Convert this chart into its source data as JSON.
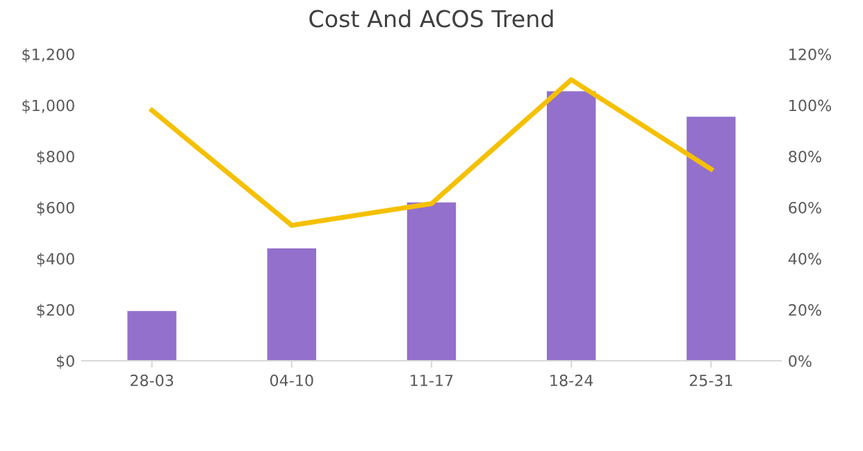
{
  "chart_data": {
    "type": "bar",
    "title": "Cost And ACOS Trend",
    "categories": [
      "28-03",
      "04-10",
      "11-17",
      "18-24",
      "25-31"
    ],
    "series": [
      {
        "color": "#9370cc",
        "values": [
          195,
          440,
          620,
          1055,
          955
        ]
      },
      {
        "type": "line",
        "axis": "y2",
        "color": "#f5c000",
        "values": [
          98,
          53,
          61.5,
          110,
          75
        ]
      }
    ],
    "ylim": [
      0,
      1200
    ],
    "yticks": [
      {
        "value": 0,
        "label": "$0"
      },
      {
        "value": 200,
        "label": "$200"
      },
      {
        "value": 400,
        "label": "$400"
      },
      {
        "value": 600,
        "label": "$600"
      },
      {
        "value": 800,
        "label": "$800"
      },
      {
        "value": 1000,
        "label": "$1,000"
      },
      {
        "value": 1200,
        "label": "$1,200"
      }
    ],
    "y2lim": [
      0,
      120
    ],
    "y2ticks": [
      {
        "value": 0,
        "label": "0%"
      },
      {
        "value": 20,
        "label": "20%"
      },
      {
        "value": 40,
        "label": "40%"
      },
      {
        "value": 60,
        "label": "60%"
      },
      {
        "value": 80,
        "label": "80%"
      },
      {
        "value": 100,
        "label": "100%"
      },
      {
        "value": 120,
        "label": "120%"
      }
    ],
    "grid": false,
    "legend": false
  }
}
